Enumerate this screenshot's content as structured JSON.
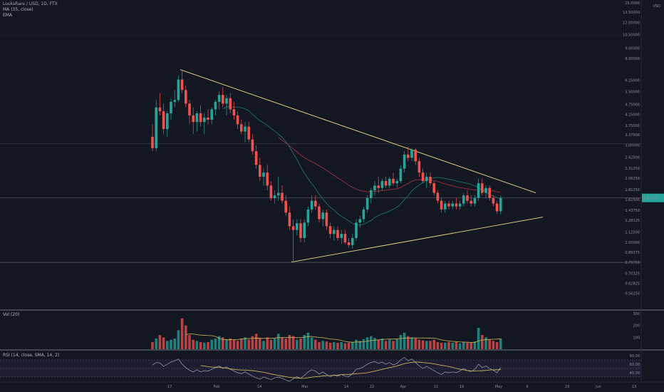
{
  "header": {
    "symbol_line": "LooksRare / USD, 1D, FTX",
    "indicator_1": "MA (35, close)",
    "indicator_2": "EMA"
  },
  "panels": {
    "volume_label": "Vol (20)",
    "rsi_label": "RSI (14, close, SMA, 14, 2)"
  },
  "colors": {
    "background": "#131722",
    "up": "#26a69a",
    "down": "#ef5350",
    "trendline": "#e8d98a",
    "ma": "#1e6f6e",
    "ema": "#9b2f3c",
    "rsi": "#9fa3b8",
    "rsi_ma": "#c9b25a"
  },
  "chart_data": {
    "type": "candlestick",
    "title": "LooksRare / USD, 1D, FTX",
    "y_scale": "log",
    "ylim": [
      0.5,
      15
    ],
    "y_ticks": [
      "15.0000",
      "13.50000",
      "12.00000",
      "10.50000",
      "9.00000",
      "8.00000",
      "6.25000",
      "5.50000",
      "4.75000",
      "4.25000",
      "3.75000",
      "3.37500",
      "3.00000",
      "2.62500",
      "2.31250",
      "2.06250",
      "1.81250",
      "1.62500",
      "1.43750",
      "1.28125",
      "1.12500",
      "1.00000",
      "0.89375",
      "0.79750",
      "0.70325",
      "0.62825",
      "0.56250"
    ],
    "x_ticks": [
      "17",
      "Feb",
      "14",
      "Mar",
      "14",
      "22",
      "Apr",
      "11",
      "19",
      "May",
      "9",
      "23",
      "Jun",
      "13"
    ],
    "axis_unit_label": "USD",
    "last_price_label": "1.65224",
    "candles": [
      {
        "o": 3.3,
        "h": 3.8,
        "l": 2.8,
        "c": 2.9
      },
      {
        "o": 2.9,
        "h": 5.0,
        "l": 2.8,
        "c": 4.6
      },
      {
        "o": 4.6,
        "h": 5.4,
        "l": 4.2,
        "c": 4.4
      },
      {
        "o": 4.4,
        "h": 4.8,
        "l": 3.4,
        "c": 3.6
      },
      {
        "o": 3.6,
        "h": 4.4,
        "l": 3.3,
        "c": 4.3
      },
      {
        "o": 4.3,
        "h": 5.1,
        "l": 4.0,
        "c": 4.9
      },
      {
        "o": 4.9,
        "h": 5.6,
        "l": 4.6,
        "c": 5.0
      },
      {
        "o": 5.0,
        "h": 6.6,
        "l": 4.9,
        "c": 6.3
      },
      {
        "o": 6.3,
        "h": 7.0,
        "l": 5.4,
        "c": 5.6
      },
      {
        "o": 5.6,
        "h": 5.9,
        "l": 4.6,
        "c": 4.8
      },
      {
        "o": 4.8,
        "h": 5.0,
        "l": 3.8,
        "c": 4.2
      },
      {
        "o": 4.2,
        "h": 4.6,
        "l": 3.4,
        "c": 3.9
      },
      {
        "o": 3.9,
        "h": 4.4,
        "l": 3.5,
        "c": 4.3
      },
      {
        "o": 4.3,
        "h": 4.7,
        "l": 3.7,
        "c": 3.9
      },
      {
        "o": 3.9,
        "h": 4.3,
        "l": 3.4,
        "c": 4.1
      },
      {
        "o": 4.1,
        "h": 4.5,
        "l": 3.8,
        "c": 4.0
      },
      {
        "o": 4.0,
        "h": 4.6,
        "l": 3.8,
        "c": 4.5
      },
      {
        "o": 4.5,
        "h": 5.0,
        "l": 4.2,
        "c": 4.9
      },
      {
        "o": 4.9,
        "h": 5.5,
        "l": 4.5,
        "c": 5.3
      },
      {
        "o": 5.3,
        "h": 5.8,
        "l": 4.6,
        "c": 4.8
      },
      {
        "o": 4.8,
        "h": 5.3,
        "l": 4.2,
        "c": 5.1
      },
      {
        "o": 5.1,
        "h": 5.4,
        "l": 4.3,
        "c": 4.5
      },
      {
        "o": 4.5,
        "h": 4.9,
        "l": 4.0,
        "c": 4.2
      },
      {
        "o": 4.2,
        "h": 4.4,
        "l": 3.6,
        "c": 3.8
      },
      {
        "o": 3.8,
        "h": 4.0,
        "l": 3.4,
        "c": 3.5
      },
      {
        "o": 3.5,
        "h": 3.9,
        "l": 3.1,
        "c": 3.7
      },
      {
        "o": 3.7,
        "h": 3.9,
        "l": 3.1,
        "c": 3.2
      },
      {
        "o": 3.2,
        "h": 3.4,
        "l": 2.7,
        "c": 2.8
      },
      {
        "o": 2.8,
        "h": 3.0,
        "l": 2.3,
        "c": 2.4
      },
      {
        "o": 2.4,
        "h": 2.6,
        "l": 2.0,
        "c": 2.1
      },
      {
        "o": 2.1,
        "h": 2.3,
        "l": 1.9,
        "c": 2.2
      },
      {
        "o": 2.2,
        "h": 2.4,
        "l": 1.8,
        "c": 1.9
      },
      {
        "o": 1.9,
        "h": 2.0,
        "l": 1.6,
        "c": 1.65
      },
      {
        "o": 1.65,
        "h": 1.8,
        "l": 1.55,
        "c": 1.7
      },
      {
        "o": 1.7,
        "h": 2.1,
        "l": 1.6,
        "c": 1.75
      },
      {
        "o": 1.75,
        "h": 1.9,
        "l": 1.55,
        "c": 1.6
      },
      {
        "o": 1.6,
        "h": 1.7,
        "l": 1.35,
        "c": 1.4
      },
      {
        "o": 1.4,
        "h": 1.5,
        "l": 1.15,
        "c": 1.2
      },
      {
        "o": 1.2,
        "h": 1.3,
        "l": 0.8,
        "c": 1.15
      },
      {
        "o": 1.15,
        "h": 1.3,
        "l": 1.08,
        "c": 1.24
      },
      {
        "o": 1.24,
        "h": 1.3,
        "l": 1.0,
        "c": 1.05
      },
      {
        "o": 1.05,
        "h": 1.3,
        "l": 1.0,
        "c": 1.25
      },
      {
        "o": 1.25,
        "h": 1.5,
        "l": 1.2,
        "c": 1.45
      },
      {
        "o": 1.45,
        "h": 1.7,
        "l": 1.4,
        "c": 1.6
      },
      {
        "o": 1.6,
        "h": 1.7,
        "l": 1.45,
        "c": 1.5
      },
      {
        "o": 1.5,
        "h": 1.55,
        "l": 1.25,
        "c": 1.3
      },
      {
        "o": 1.3,
        "h": 1.45,
        "l": 1.2,
        "c": 1.4
      },
      {
        "o": 1.4,
        "h": 1.45,
        "l": 1.15,
        "c": 1.2
      },
      {
        "o": 1.2,
        "h": 1.25,
        "l": 1.05,
        "c": 1.1
      },
      {
        "o": 1.1,
        "h": 1.2,
        "l": 1.02,
        "c": 1.15
      },
      {
        "o": 1.15,
        "h": 1.2,
        "l": 1.02,
        "c": 1.05
      },
      {
        "o": 1.05,
        "h": 1.15,
        "l": 0.98,
        "c": 1.1
      },
      {
        "o": 1.1,
        "h": 1.15,
        "l": 0.98,
        "c": 1.0
      },
      {
        "o": 1.0,
        "h": 1.05,
        "l": 0.94,
        "c": 0.97
      },
      {
        "o": 0.97,
        "h": 1.1,
        "l": 0.93,
        "c": 1.05
      },
      {
        "o": 1.05,
        "h": 1.3,
        "l": 1.02,
        "c": 1.25
      },
      {
        "o": 1.25,
        "h": 1.35,
        "l": 1.18,
        "c": 1.3
      },
      {
        "o": 1.3,
        "h": 1.5,
        "l": 1.25,
        "c": 1.45
      },
      {
        "o": 1.45,
        "h": 1.7,
        "l": 1.4,
        "c": 1.65
      },
      {
        "o": 1.65,
        "h": 1.85,
        "l": 1.55,
        "c": 1.8
      },
      {
        "o": 1.8,
        "h": 2.0,
        "l": 1.7,
        "c": 1.9
      },
      {
        "o": 1.9,
        "h": 2.1,
        "l": 1.75,
        "c": 1.85
      },
      {
        "o": 1.85,
        "h": 2.05,
        "l": 1.8,
        "c": 2.0
      },
      {
        "o": 2.0,
        "h": 2.1,
        "l": 1.85,
        "c": 1.9
      },
      {
        "o": 1.9,
        "h": 2.1,
        "l": 1.85,
        "c": 2.05
      },
      {
        "o": 2.05,
        "h": 2.2,
        "l": 1.9,
        "c": 1.95
      },
      {
        "o": 1.95,
        "h": 2.05,
        "l": 1.85,
        "c": 2.0
      },
      {
        "o": 2.0,
        "h": 2.4,
        "l": 1.95,
        "c": 2.3
      },
      {
        "o": 2.3,
        "h": 2.8,
        "l": 2.2,
        "c": 2.7
      },
      {
        "o": 2.7,
        "h": 2.95,
        "l": 2.5,
        "c": 2.6
      },
      {
        "o": 2.6,
        "h": 2.9,
        "l": 2.5,
        "c": 2.85
      },
      {
        "o": 2.85,
        "h": 2.9,
        "l": 2.4,
        "c": 2.5
      },
      {
        "o": 2.5,
        "h": 2.6,
        "l": 2.1,
        "c": 2.2
      },
      {
        "o": 2.2,
        "h": 2.3,
        "l": 1.95,
        "c": 2.0
      },
      {
        "o": 2.0,
        "h": 2.2,
        "l": 1.85,
        "c": 2.1
      },
      {
        "o": 2.1,
        "h": 2.2,
        "l": 1.9,
        "c": 1.95
      },
      {
        "o": 1.95,
        "h": 2.0,
        "l": 1.7,
        "c": 1.75
      },
      {
        "o": 1.75,
        "h": 1.8,
        "l": 1.55,
        "c": 1.6
      },
      {
        "o": 1.6,
        "h": 1.65,
        "l": 1.4,
        "c": 1.45
      },
      {
        "o": 1.45,
        "h": 1.6,
        "l": 1.4,
        "c": 1.55
      },
      {
        "o": 1.55,
        "h": 1.6,
        "l": 1.45,
        "c": 1.5
      },
      {
        "o": 1.5,
        "h": 1.6,
        "l": 1.45,
        "c": 1.55
      },
      {
        "o": 1.55,
        "h": 1.65,
        "l": 1.45,
        "c": 1.5
      },
      {
        "o": 1.5,
        "h": 1.6,
        "l": 1.45,
        "c": 1.55
      },
      {
        "o": 1.55,
        "h": 1.75,
        "l": 1.5,
        "c": 1.7
      },
      {
        "o": 1.7,
        "h": 1.8,
        "l": 1.55,
        "c": 1.6
      },
      {
        "o": 1.6,
        "h": 1.7,
        "l": 1.5,
        "c": 1.55
      },
      {
        "o": 1.55,
        "h": 1.7,
        "l": 1.5,
        "c": 1.65
      },
      {
        "o": 1.65,
        "h": 2.05,
        "l": 1.6,
        "c": 1.95
      },
      {
        "o": 1.95,
        "h": 2.05,
        "l": 1.7,
        "c": 1.75
      },
      {
        "o": 1.75,
        "h": 1.9,
        "l": 1.65,
        "c": 1.85
      },
      {
        "o": 1.85,
        "h": 1.9,
        "l": 1.6,
        "c": 1.65
      },
      {
        "o": 1.65,
        "h": 1.7,
        "l": 1.5,
        "c": 1.55
      },
      {
        "o": 1.55,
        "h": 1.6,
        "l": 1.38,
        "c": 1.42
      },
      {
        "o": 1.42,
        "h": 1.7,
        "l": 1.37,
        "c": 1.65
      }
    ],
    "volume": [
      60,
      90,
      120,
      100,
      70,
      80,
      90,
      160,
      260,
      200,
      120,
      80,
      70,
      60,
      55,
      60,
      80,
      90,
      110,
      100,
      85,
      90,
      80,
      70,
      90,
      100,
      80,
      110,
      130,
      90,
      70,
      100,
      80,
      90,
      130,
      100,
      90,
      120,
      110,
      80,
      90,
      120,
      140,
      100,
      80,
      60,
      70,
      65,
      55,
      60,
      55,
      60,
      50,
      55,
      60,
      80,
      70,
      85,
      100,
      110,
      95,
      80,
      90,
      70,
      80,
      70,
      85,
      120,
      140,
      110,
      100,
      90,
      80,
      75,
      70,
      70,
      80,
      60,
      55,
      55,
      60,
      55,
      60,
      50,
      60,
      55,
      60,
      65,
      180,
      120,
      100,
      80,
      70,
      60,
      90
    ],
    "rsi": [
      58,
      64,
      63,
      55,
      60,
      65,
      68,
      72,
      60,
      52,
      46,
      42,
      47,
      42,
      45,
      44,
      48,
      52,
      56,
      50,
      54,
      48,
      44,
      40,
      38,
      42,
      37,
      32,
      28,
      25,
      30,
      27,
      24,
      28,
      30,
      27,
      23,
      20,
      26,
      31,
      27,
      34,
      42,
      47,
      44,
      37,
      42,
      36,
      31,
      35,
      32,
      36,
      32,
      31,
      38,
      48,
      50,
      54,
      60,
      64,
      66,
      62,
      65,
      60,
      64,
      58,
      62,
      70,
      76,
      68,
      72,
      64,
      56,
      50,
      55,
      50,
      45,
      40,
      36,
      42,
      40,
      42,
      40,
      44,
      50,
      45,
      43,
      48,
      60,
      52,
      56,
      50,
      46,
      40,
      52
    ],
    "rsi_levels": [
      70,
      50,
      30
    ],
    "rsi_ticks": [
      "80.00",
      "60.00",
      "40.00"
    ],
    "vol_ticks": [
      "300",
      "200",
      "100"
    ],
    "ma_period": 35
  }
}
